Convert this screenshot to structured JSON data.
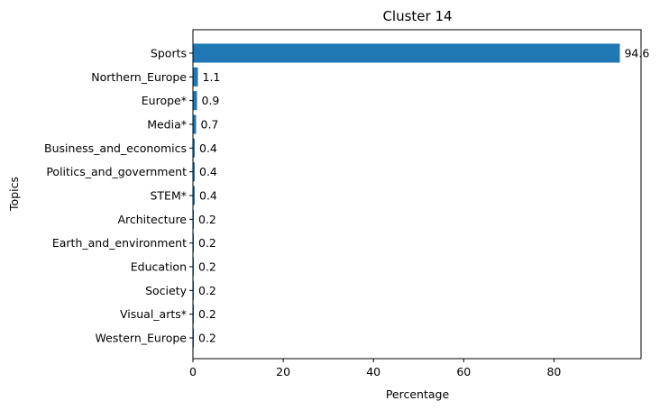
{
  "chart_data": {
    "type": "bar",
    "orientation": "horizontal",
    "title": "Cluster 14",
    "xlabel": "Percentage",
    "ylabel": "Topics",
    "categories": [
      "Sports",
      "Northern_Europe",
      "Europe*",
      "Media*",
      "Business_and_economics",
      "Politics_and_government",
      "STEM*",
      "Architecture",
      "Earth_and_environment",
      "Education",
      "Society",
      "Visual_arts*",
      "Western_Europe"
    ],
    "values": [
      94.6,
      1.1,
      0.9,
      0.7,
      0.4,
      0.4,
      0.4,
      0.2,
      0.2,
      0.2,
      0.2,
      0.2,
      0.2
    ],
    "value_labels": [
      "94.6",
      "1.1",
      "0.9",
      "0.7",
      "0.4",
      "0.4",
      "0.4",
      "0.2",
      "0.2",
      "0.2",
      "0.2",
      "0.2",
      "0.2"
    ],
    "xticks": [
      0,
      20,
      40,
      60,
      80
    ],
    "xtick_labels": [
      "0",
      "20",
      "40",
      "60",
      "80"
    ],
    "xlim": [
      0,
      99.3
    ],
    "bar_color": "#1f77b4",
    "grid": false,
    "legend": "none"
  }
}
